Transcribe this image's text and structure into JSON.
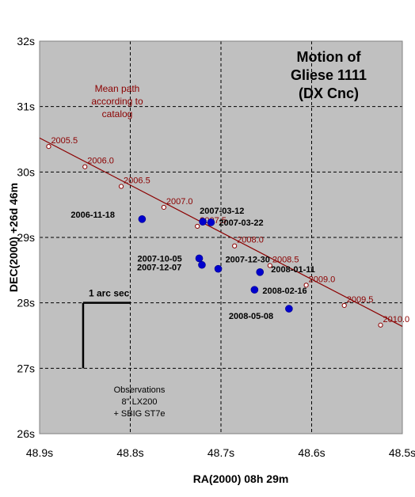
{
  "chart_data": {
    "type": "scatter",
    "title_lines": [
      "Motion of",
      "Gliese 1111",
      "(DX Cnc)"
    ],
    "xlabel": "RA(2000) 08h 29m",
    "ylabel": "DEC(2000) +26d 46m",
    "x_ticks": [
      "48.9s",
      "48.8s",
      "48.7s",
      "48.6s",
      "48.5s"
    ],
    "x_tick_values": [
      48.9,
      48.8,
      48.7,
      48.6,
      48.5
    ],
    "y_ticks": [
      "32s",
      "31s",
      "30s",
      "29s",
      "28s",
      "27s",
      "26s"
    ],
    "y_tick_values": [
      32,
      31,
      30,
      29,
      28,
      27,
      26
    ],
    "xlim": [
      48.9,
      48.5
    ],
    "ylim": [
      26,
      32
    ],
    "x_reversed": true,
    "grid": true,
    "colors": {
      "plot_background": "#c0c0c0",
      "observation_marker": "#0000cd",
      "mean_path": "#8b0000"
    },
    "mean_path": {
      "label": "Mean path according to catalog",
      "label_lines": [
        "Mean path",
        "according to",
        "catalog"
      ],
      "line_start": {
        "x": 48.9,
        "y": 30.52
      },
      "line_end": {
        "x": 48.5,
        "y": 27.64
      },
      "points": [
        {
          "label": "2005.5",
          "x": 48.89,
          "y": 30.39
        },
        {
          "label": "2006.0",
          "x": 48.85,
          "y": 30.08
        },
        {
          "label": "2006.5",
          "x": 48.81,
          "y": 29.78
        },
        {
          "label": "2007.0",
          "x": 48.763,
          "y": 29.46
        },
        {
          "label": "2007.5",
          "x": 48.726,
          "y": 29.17
        },
        {
          "label": "2008.0",
          "x": 48.685,
          "y": 28.87
        },
        {
          "label": "2008.5",
          "x": 48.646,
          "y": 28.57
        },
        {
          "label": "2009.0",
          "x": 48.606,
          "y": 28.27
        },
        {
          "label": "2009.5",
          "x": 48.564,
          "y": 27.96
        },
        {
          "label": "2010.0",
          "x": 48.524,
          "y": 27.66
        }
      ]
    },
    "observations": [
      {
        "label": "2006-11-18",
        "x": 48.787,
        "y": 29.28
      },
      {
        "label": "2007-03-12",
        "x": 48.72,
        "y": 29.24
      },
      {
        "label": "2007-03-22",
        "x": 48.711,
        "y": 29.23
      },
      {
        "label": "2007-10-05",
        "x": 48.724,
        "y": 28.68
      },
      {
        "label": "2007-12-07",
        "x": 48.721,
        "y": 28.58
      },
      {
        "label": "2007-12-30",
        "x": 48.703,
        "y": 28.52
      },
      {
        "label": "2008-01-11",
        "x": 48.657,
        "y": 28.47
      },
      {
        "label": "2008-02-16",
        "x": 48.663,
        "y": 28.2
      },
      {
        "label": "2008-05-08",
        "x": 48.625,
        "y": 27.91
      }
    ],
    "scale_bar": {
      "label": "1 arc sec",
      "x_start": 48.852,
      "x_end": 48.8,
      "y_top": 28.0,
      "y_bottom": 27.0
    },
    "annotations": {
      "observations_note": [
        "Observations",
        "8\" LX200",
        "+ SBIG ST7e"
      ]
    }
  }
}
